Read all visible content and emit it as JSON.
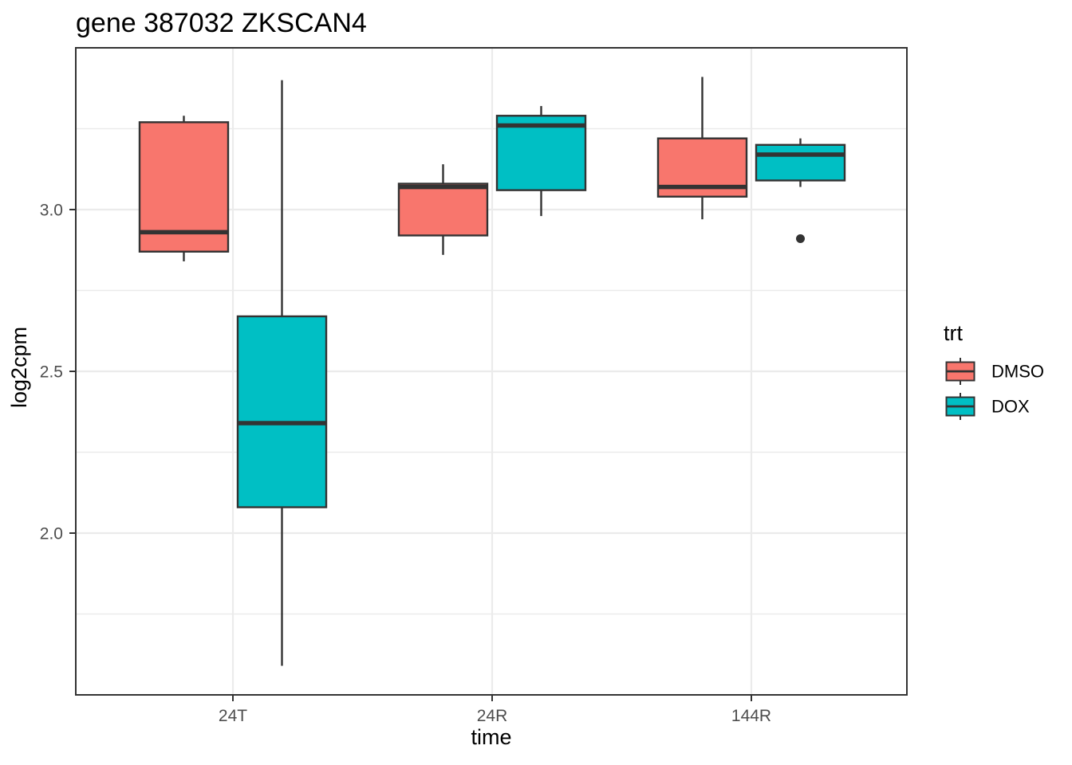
{
  "chart_data": {
    "type": "boxplot",
    "title": "gene 387032 ZKSCAN4",
    "xlabel": "time",
    "ylabel": "log2cpm",
    "categories": [
      "24T",
      "24R",
      "144R"
    ],
    "ylim": [
      1.5,
      3.5
    ],
    "y_major_ticks": [
      {
        "label": "2.0",
        "value": 2.0
      },
      {
        "label": "2.5",
        "value": 2.5
      },
      {
        "label": "3.0",
        "value": 3.0
      }
    ],
    "y_minor_gridlines": [
      1.75,
      2.25,
      2.75,
      3.25
    ],
    "grid": true,
    "legend": {
      "title": "trt",
      "position": "right",
      "entries": [
        "DMSO",
        "DOX"
      ]
    },
    "series": [
      {
        "name": "DMSO",
        "color": "#F8766D",
        "boxes": [
          {
            "category": "24T",
            "whisker_min": 2.84,
            "q1": 2.87,
            "median": 2.93,
            "q3": 3.27,
            "whisker_max": 3.29,
            "outliers": []
          },
          {
            "category": "24R",
            "whisker_min": 2.86,
            "q1": 2.92,
            "median": 3.07,
            "q3": 3.08,
            "whisker_max": 3.14,
            "outliers": []
          },
          {
            "category": "144R",
            "whisker_min": 2.97,
            "q1": 3.04,
            "median": 3.07,
            "q3": 3.22,
            "whisker_max": 3.41,
            "outliers": []
          }
        ]
      },
      {
        "name": "DOX",
        "color": "#00BFC4",
        "boxes": [
          {
            "category": "24T",
            "whisker_min": 1.59,
            "q1": 2.08,
            "median": 2.34,
            "q3": 2.67,
            "whisker_max": 3.4,
            "outliers": []
          },
          {
            "category": "24R",
            "whisker_min": 2.98,
            "q1": 3.06,
            "median": 3.26,
            "q3": 3.29,
            "whisker_max": 3.32,
            "outliers": []
          },
          {
            "category": "144R",
            "whisker_min": 3.07,
            "q1": 3.09,
            "median": 3.17,
            "q3": 3.2,
            "whisker_max": 3.22,
            "outliers": [
              2.91
            ]
          }
        ]
      }
    ],
    "style": {
      "box_outline_color": "#333333",
      "gridline_color": "#EBEBEB",
      "tick_label_color": "#4D4D4D",
      "axis_tick_color": "#333333",
      "panel_border_color": "#333333",
      "background_color": "#FFFFFF",
      "outlier_color": "#333333"
    }
  }
}
